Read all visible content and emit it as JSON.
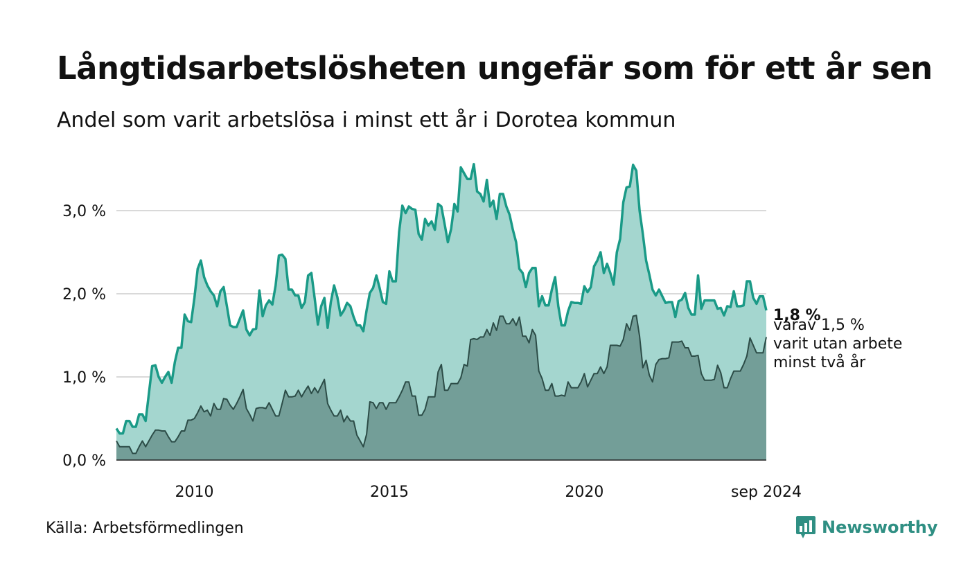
{
  "title": "Långtidsarbetslösheten ungefär som för ett år sen",
  "subtitle": "Andel som varit arbetslösa i minst ett år i Dorotea kommun",
  "source": "Källa: Arbetsförmedlingen",
  "logo": {
    "text": "Newsworthy",
    "icon": "newsworthy-bar-chart-icon",
    "color": "#2f8f83"
  },
  "annotation": {
    "value": "1,8 %",
    "lines": [
      "varav 1,5 %",
      "varit utan arbete",
      "minst två år"
    ]
  },
  "colors": {
    "series1_line": "#1a9a87",
    "series1_fill": "#a4d6cf",
    "series2_line": "#2c4c47",
    "series2_fill": "#739e98",
    "grid": "#d9d9d9",
    "axis": "#222222"
  },
  "chart_data": {
    "type": "area",
    "x_start": "2008-01",
    "x_end": "2024-09",
    "ylim": [
      0,
      3.6
    ],
    "yticks": [
      {
        "value": 0,
        "label": "0,0 %"
      },
      {
        "value": 1,
        "label": "1,0 %"
      },
      {
        "value": 2,
        "label": "2,0 %"
      },
      {
        "value": 3,
        "label": "3,0 %"
      }
    ],
    "xticks": [
      {
        "value": "2010-01",
        "label": "2010"
      },
      {
        "value": "2015-01",
        "label": "2015"
      },
      {
        "value": "2020-01",
        "label": "2020"
      },
      {
        "value": "2024-09",
        "label": "sep 2024"
      }
    ],
    "grid": true,
    "series": [
      {
        "values": [
          0.38,
          0.32,
          0.32,
          0.47,
          0.47,
          0.4,
          0.4,
          0.55,
          0.55,
          0.47,
          0.8,
          1.13,
          1.14,
          1.0,
          0.93,
          1.0,
          1.06,
          0.93,
          1.18,
          1.35,
          1.35,
          1.75,
          1.67,
          1.66,
          1.95,
          2.3,
          2.4,
          2.2,
          2.1,
          2.03,
          1.98,
          1.85,
          2.03,
          2.08,
          1.85,
          1.62,
          1.6,
          1.6,
          1.7,
          1.8,
          1.57,
          1.5,
          1.57,
          1.58,
          2.04,
          1.73,
          1.86,
          1.92,
          1.87,
          2.1,
          2.46,
          2.47,
          2.42,
          2.05,
          2.05,
          1.98,
          1.98,
          1.83,
          1.9,
          2.22,
          2.25,
          1.95,
          1.63,
          1.85,
          1.95,
          1.59,
          1.9,
          2.1,
          1.96,
          1.74,
          1.8,
          1.89,
          1.85,
          1.72,
          1.62,
          1.62,
          1.55,
          1.8,
          2.01,
          2.07,
          2.22,
          2.07,
          1.9,
          1.88,
          2.27,
          2.15,
          2.15,
          2.74,
          3.06,
          2.97,
          3.05,
          3.02,
          3.01,
          2.72,
          2.65,
          2.9,
          2.82,
          2.87,
          2.77,
          3.08,
          3.05,
          2.84,
          2.62,
          2.78,
          3.08,
          2.99,
          3.52,
          3.45,
          3.38,
          3.38,
          3.56,
          3.23,
          3.2,
          3.11,
          3.37,
          3.05,
          3.12,
          2.9,
          3.2,
          3.2,
          3.05,
          2.95,
          2.77,
          2.62,
          2.3,
          2.25,
          2.08,
          2.25,
          2.31,
          2.31,
          1.85,
          1.97,
          1.86,
          1.86,
          2.05,
          2.2,
          1.85,
          1.62,
          1.62,
          1.79,
          1.9,
          1.89,
          1.89,
          1.88,
          2.09,
          2.02,
          2.08,
          2.33,
          2.4,
          2.5,
          2.25,
          2.36,
          2.25,
          2.11,
          2.5,
          2.66,
          3.1,
          3.28,
          3.29,
          3.55,
          3.48,
          3.0,
          2.72,
          2.4,
          2.23,
          2.05,
          1.98,
          2.05,
          1.97,
          1.89,
          1.9,
          1.9,
          1.72,
          1.91,
          1.93,
          2.01,
          1.83,
          1.75,
          1.75,
          2.22,
          1.82,
          1.92,
          1.92,
          1.92,
          1.92,
          1.82,
          1.83,
          1.74,
          1.85,
          1.84,
          2.03,
          1.85,
          1.85,
          1.86,
          2.15,
          2.15,
          1.95,
          1.88,
          1.97,
          1.97,
          1.8
        ]
      },
      {
        "values": [
          0.23,
          0.16,
          0.16,
          0.16,
          0.16,
          0.08,
          0.08,
          0.16,
          0.23,
          0.16,
          0.23,
          0.3,
          0.36,
          0.36,
          0.35,
          0.35,
          0.28,
          0.22,
          0.22,
          0.28,
          0.35,
          0.35,
          0.48,
          0.48,
          0.5,
          0.57,
          0.65,
          0.58,
          0.6,
          0.53,
          0.68,
          0.61,
          0.61,
          0.74,
          0.73,
          0.66,
          0.61,
          0.68,
          0.76,
          0.85,
          0.62,
          0.55,
          0.47,
          0.62,
          0.63,
          0.63,
          0.62,
          0.69,
          0.61,
          0.53,
          0.53,
          0.68,
          0.84,
          0.76,
          0.76,
          0.77,
          0.84,
          0.76,
          0.83,
          0.89,
          0.8,
          0.87,
          0.81,
          0.89,
          0.97,
          0.68,
          0.6,
          0.53,
          0.53,
          0.6,
          0.46,
          0.53,
          0.47,
          0.47,
          0.3,
          0.23,
          0.16,
          0.31,
          0.7,
          0.69,
          0.62,
          0.69,
          0.69,
          0.61,
          0.69,
          0.69,
          0.69,
          0.76,
          0.84,
          0.94,
          0.94,
          0.77,
          0.77,
          0.54,
          0.54,
          0.61,
          0.76,
          0.76,
          0.76,
          1.06,
          1.15,
          0.84,
          0.84,
          0.92,
          0.92,
          0.92,
          0.99,
          1.15,
          1.13,
          1.45,
          1.46,
          1.45,
          1.48,
          1.48,
          1.57,
          1.5,
          1.65,
          1.56,
          1.73,
          1.73,
          1.64,
          1.64,
          1.7,
          1.62,
          1.72,
          1.49,
          1.49,
          1.41,
          1.57,
          1.5,
          1.07,
          0.98,
          0.84,
          0.84,
          0.92,
          0.77,
          0.77,
          0.78,
          0.77,
          0.94,
          0.87,
          0.87,
          0.87,
          0.94,
          1.04,
          0.88,
          0.96,
          1.04,
          1.04,
          1.12,
          1.04,
          1.12,
          1.38,
          1.38,
          1.38,
          1.37,
          1.45,
          1.64,
          1.56,
          1.73,
          1.74,
          1.49,
          1.11,
          1.2,
          1.02,
          0.94,
          1.15,
          1.21,
          1.22,
          1.22,
          1.23,
          1.42,
          1.42,
          1.42,
          1.43,
          1.35,
          1.35,
          1.25,
          1.25,
          1.26,
          1.04,
          0.96,
          0.96,
          0.96,
          0.97,
          1.14,
          1.05,
          0.87,
          0.87,
          0.98,
          1.07,
          1.07,
          1.07,
          1.15,
          1.25,
          1.47,
          1.38,
          1.29,
          1.29,
          1.29,
          1.48
        ]
      }
    ]
  }
}
